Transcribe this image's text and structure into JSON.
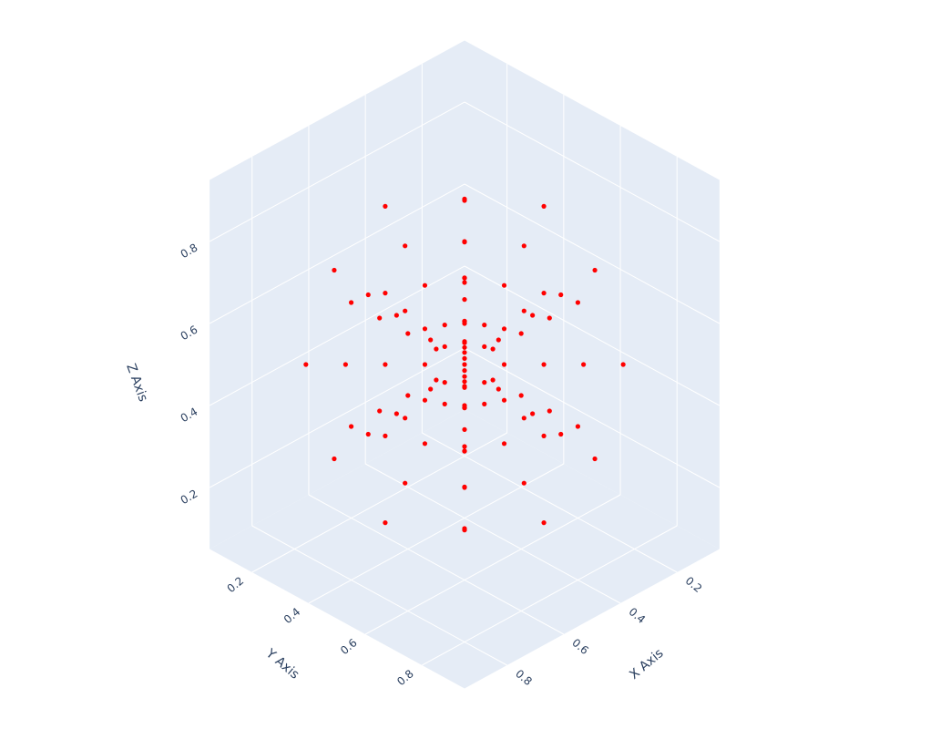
{
  "chart_data": {
    "type": "scatter3d",
    "color": "#ff0000",
    "xlabel": "X Axis",
    "ylabel": "Y Axis",
    "zlabel": "Z Axis",
    "xlim": [
      0.05,
      0.95
    ],
    "ylim": [
      0.05,
      0.95
    ],
    "zlim": [
      0.05,
      0.95
    ],
    "xticks": [
      0.2,
      0.4,
      0.6,
      0.8
    ],
    "yticks": [
      0.2,
      0.4,
      0.6,
      0.8
    ],
    "zticks": [
      0.2,
      0.4,
      0.6,
      0.8
    ],
    "x": [
      0.6,
      0.7,
      0.8,
      0.9,
      0.4,
      0.3,
      0.2,
      0.1,
      0.5,
      0.5,
      0.5,
      0.5,
      0.5,
      0.5,
      0.5,
      0.5,
      0.5,
      0.5,
      0.5,
      0.5,
      0.5,
      0.5,
      0.5,
      0.5,
      0.57,
      0.64,
      0.71,
      0.78,
      0.57,
      0.64,
      0.71,
      0.78,
      0.43,
      0.36,
      0.29,
      0.22,
      0.43,
      0.36,
      0.29,
      0.22,
      0.57,
      0.64,
      0.71,
      0.78,
      0.57,
      0.64,
      0.71,
      0.78,
      0.43,
      0.36,
      0.29,
      0.22,
      0.43,
      0.36,
      0.29,
      0.22,
      0.5,
      0.5,
      0.5,
      0.5,
      0.5,
      0.5,
      0.5,
      0.5,
      0.5,
      0.5,
      0.5,
      0.5,
      0.5,
      0.5,
      0.5,
      0.5,
      0.56,
      0.62,
      0.67,
      0.73,
      0.56,
      0.62,
      0.67,
      0.73,
      0.56,
      0.62,
      0.67,
      0.73,
      0.56,
      0.62,
      0.67,
      0.73,
      0.44,
      0.38,
      0.33,
      0.27,
      0.44,
      0.38,
      0.33,
      0.27,
      0.44,
      0.38,
      0.33,
      0.27,
      0.44,
      0.38,
      0.33,
      0.27,
      0.5
    ],
    "y": [
      0.5,
      0.5,
      0.5,
      0.5,
      0.5,
      0.5,
      0.5,
      0.5,
      0.6,
      0.7,
      0.8,
      0.9,
      0.4,
      0.3,
      0.2,
      0.1,
      0.5,
      0.5,
      0.5,
      0.5,
      0.5,
      0.5,
      0.5,
      0.5,
      0.57,
      0.64,
      0.71,
      0.78,
      0.43,
      0.36,
      0.29,
      0.22,
      0.57,
      0.64,
      0.71,
      0.78,
      0.43,
      0.36,
      0.29,
      0.22,
      0.5,
      0.5,
      0.5,
      0.5,
      0.5,
      0.5,
      0.5,
      0.5,
      0.5,
      0.5,
      0.5,
      0.5,
      0.5,
      0.5,
      0.5,
      0.5,
      0.57,
      0.64,
      0.71,
      0.78,
      0.57,
      0.64,
      0.71,
      0.78,
      0.43,
      0.36,
      0.29,
      0.22,
      0.43,
      0.36,
      0.29,
      0.22,
      0.56,
      0.62,
      0.67,
      0.73,
      0.56,
      0.62,
      0.67,
      0.73,
      0.44,
      0.38,
      0.33,
      0.27,
      0.44,
      0.38,
      0.33,
      0.27,
      0.56,
      0.62,
      0.67,
      0.73,
      0.56,
      0.62,
      0.67,
      0.73,
      0.44,
      0.38,
      0.33,
      0.27,
      0.44,
      0.38,
      0.33,
      0.27,
      0.5
    ],
    "z": [
      0.5,
      0.5,
      0.5,
      0.5,
      0.5,
      0.5,
      0.5,
      0.5,
      0.5,
      0.5,
      0.5,
      0.5,
      0.5,
      0.5,
      0.5,
      0.5,
      0.6,
      0.7,
      0.8,
      0.9,
      0.4,
      0.3,
      0.2,
      0.1,
      0.5,
      0.5,
      0.5,
      0.5,
      0.5,
      0.5,
      0.5,
      0.5,
      0.5,
      0.5,
      0.5,
      0.5,
      0.5,
      0.5,
      0.5,
      0.5,
      0.57,
      0.64,
      0.71,
      0.78,
      0.43,
      0.36,
      0.29,
      0.22,
      0.57,
      0.64,
      0.71,
      0.78,
      0.43,
      0.36,
      0.29,
      0.22,
      0.57,
      0.64,
      0.71,
      0.78,
      0.43,
      0.36,
      0.29,
      0.22,
      0.57,
      0.64,
      0.71,
      0.78,
      0.43,
      0.36,
      0.29,
      0.22,
      0.56,
      0.62,
      0.67,
      0.73,
      0.44,
      0.38,
      0.33,
      0.27,
      0.56,
      0.62,
      0.67,
      0.73,
      0.44,
      0.38,
      0.33,
      0.27,
      0.56,
      0.62,
      0.67,
      0.73,
      0.44,
      0.38,
      0.33,
      0.27,
      0.56,
      0.62,
      0.67,
      0.73,
      0.44,
      0.38,
      0.33,
      0.27,
      0.5
    ]
  }
}
